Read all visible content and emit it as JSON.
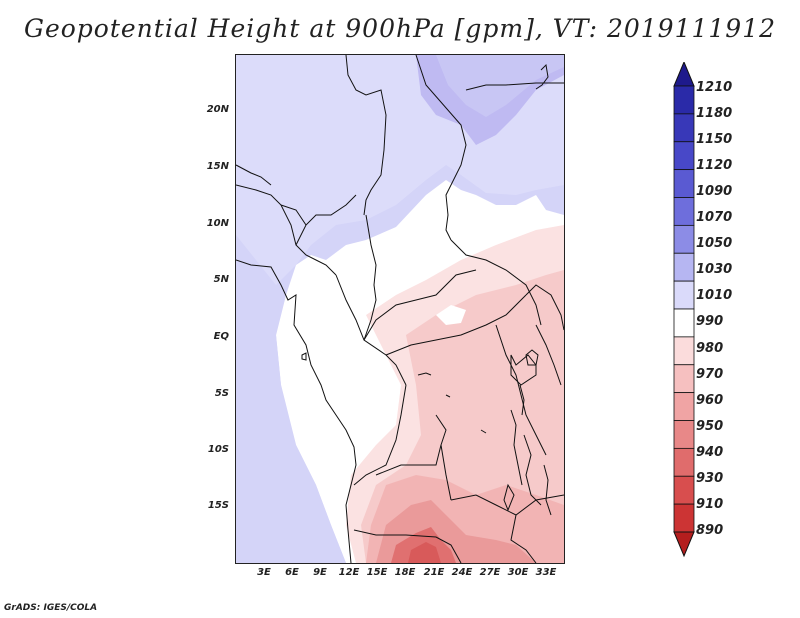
{
  "title": "Geopotential Height at 900hPa [gpm], VT: 2019111912",
  "credit": "GrADS: IGES/COLA",
  "lat_axis": [
    "20N",
    "15N",
    "10N",
    "5N",
    "EQ",
    "5S",
    "10S",
    "15S"
  ],
  "lon_axis": [
    "3E",
    "6E",
    "9E",
    "12E",
    "15E",
    "18E",
    "21E",
    "24E",
    "27E",
    "30E",
    "33E"
  ],
  "colorbar": {
    "levels": [
      "1210",
      "1180",
      "1150",
      "1120",
      "1090",
      "1070",
      "1050",
      "1030",
      "1010",
      "990",
      "980",
      "970",
      "960",
      "950",
      "940",
      "930",
      "910",
      "890"
    ],
    "colors": [
      "#1e1a8c",
      "#2a2aa8",
      "#3838b8",
      "#4848c8",
      "#5a5ad2",
      "#6e6edc",
      "#8c8ce6",
      "#b6b6f2",
      "#dadafa",
      "#ffffff",
      "#fbdcdc",
      "#f6c0c0",
      "#f0a4a4",
      "#e88888",
      "#e06c6c",
      "#d84e4e",
      "#cc3434",
      "#b41e1e"
    ]
  },
  "field_colors": {
    "ocean_low": "#d2d2f8",
    "sahel": "#dcdcfa",
    "north": "#c4c4f4",
    "north_deep": "#b4b0f0",
    "land_white": "#ffffff",
    "red_1": "#fbe0e0",
    "red_2": "#f6c8c8",
    "red_3": "#eea4a4",
    "red_4": "#e48282",
    "red_5": "#d85858"
  }
}
